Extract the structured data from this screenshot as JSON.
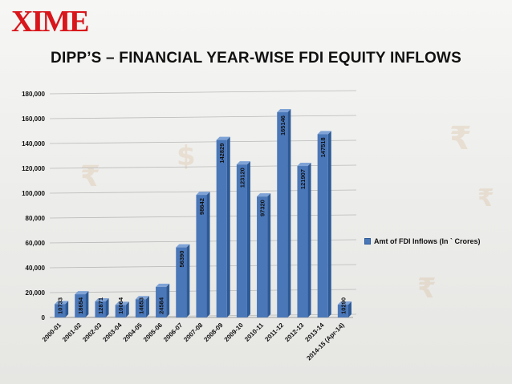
{
  "logo": {
    "text": "XIME"
  },
  "title": "DIPP’S – FINANCIAL YEAR-WISE FDI EQUITY INFLOWS",
  "colors": {
    "bar": "#4a77b8",
    "bar_side": "#2d5a96",
    "bar_top": "#7fa3d6",
    "logo": "#d8161b"
  },
  "chart_data": {
    "type": "bar",
    "title": "DIPP’S – FINANCIAL YEAR-WISE FDI EQUITY INFLOWS",
    "xlabel": "",
    "ylabel": "",
    "ylim": [
      0,
      180000
    ],
    "yticks": [
      "0",
      "20,000",
      "40,000",
      "60,000",
      "80,000",
      "100,000",
      "120,000",
      "140,000",
      "160,000",
      "180,000"
    ],
    "grid": true,
    "legend_position": "right",
    "categories": [
      "2000-01",
      "2001-02",
      "2002-03",
      "2003-04",
      "2004-05",
      "2005-06",
      "2006-07",
      "2007-08",
      "2008-09",
      "2009-10",
      "2010-11",
      "2011-12",
      "2012-13",
      "2013-14",
      "2014-15 (Apr-14)"
    ],
    "series": [
      {
        "name": "Amt of FDI Inflows (In ` Crores)",
        "values": [
          10733,
          18654,
          12871,
          10064,
          14653,
          24584,
          56390,
          98642,
          142829,
          123120,
          97320,
          165146,
          121907,
          147518,
          10290
        ],
        "labels": [
          "10733",
          "18654",
          "12871",
          "10064",
          "14653",
          "24584",
          "56390",
          "98642",
          "142829",
          "123120",
          "97320",
          "165146",
          "121907",
          "147518",
          "10290"
        ]
      }
    ]
  }
}
